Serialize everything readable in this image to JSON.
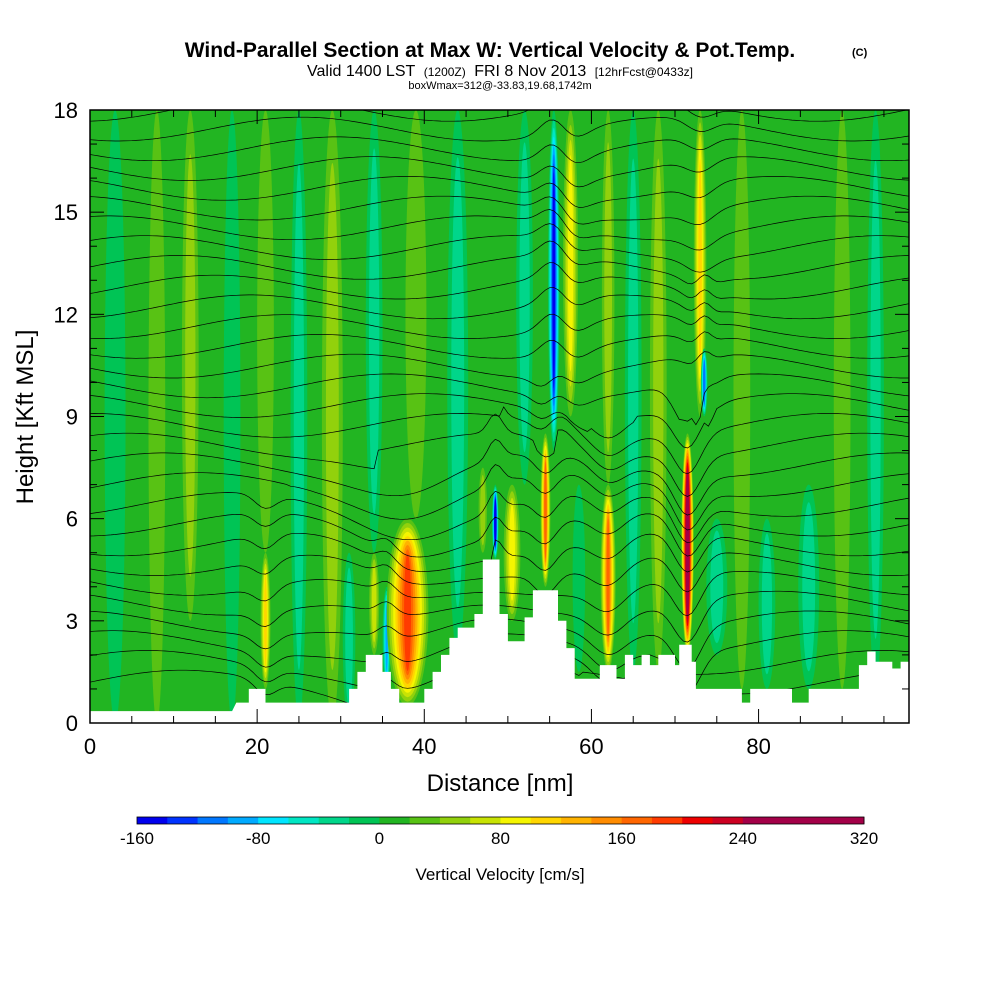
{
  "chart_data": {
    "type": "heatmap",
    "title": "Wind-Parallel Section at Max W: Vertical Velocity & Pot.Temp.",
    "copyright": "(C)",
    "subtitle": {
      "valid": "Valid 1400 LST",
      "utc": "(1200Z)",
      "date": "FRI 8 Nov 2013",
      "forecast": "[12hrFcst@0433z]"
    },
    "note": "boxWmax=312@-33.83,19.68,1742m",
    "xlabel": "Distance [nm]",
    "ylabel": "Height [Kft MSL]",
    "xlim": [
      0,
      98
    ],
    "ylim": [
      0,
      18
    ],
    "x_ticks": [
      0,
      20,
      40,
      60,
      80
    ],
    "x_tick_labels": [
      "0",
      "20",
      "40",
      "60",
      "80"
    ],
    "y_ticks": [
      0,
      3,
      6,
      9,
      12,
      15,
      18
    ],
    "y_tick_labels": [
      "0",
      "3",
      "6",
      "9",
      "12",
      "15",
      "18"
    ],
    "colorbar": {
      "label": "Vertical Velocity [cm/s]",
      "min": -160,
      "max": 320,
      "step": 20,
      "tick_values": [
        -160,
        -80,
        0,
        80,
        160,
        240,
        320
      ],
      "tick_labels": [
        "-160",
        "-80",
        "0",
        "80",
        "160",
        "240",
        "320"
      ],
      "colors": [
        "#0000ee",
        "#0033ff",
        "#0077ff",
        "#00aaff",
        "#00e5ff",
        "#00e6c3",
        "#00d68a",
        "#00c455",
        "#22b522",
        "#58c214",
        "#92d10c",
        "#c8e304",
        "#f5f500",
        "#ffd600",
        "#ffb300",
        "#ff8c00",
        "#ff6600",
        "#ff3b00",
        "#ee0000",
        "#cc0022",
        "#a30048"
      ]
    },
    "background_w": 5,
    "vertical_velocity_features": [
      {
        "x": 3,
        "z_bottom": 0,
        "z_top": 18,
        "width": 2.5,
        "w": -15
      },
      {
        "x": 8,
        "z_bottom": 0,
        "z_top": 18,
        "width": 2.0,
        "w": 30
      },
      {
        "x": 12,
        "z_bottom": 3,
        "z_top": 18,
        "width": 2.0,
        "w": 45
      },
      {
        "x": 17,
        "z_bottom": 0,
        "z_top": 18,
        "width": 2.0,
        "w": -20
      },
      {
        "x": 21,
        "z_bottom": 1,
        "z_top": 5,
        "width": 1.2,
        "w": 110
      },
      {
        "x": 21,
        "z_bottom": 5,
        "z_top": 18,
        "width": 2.0,
        "w": 30
      },
      {
        "x": 25,
        "z_bottom": 0,
        "z_top": 18,
        "width": 2.0,
        "w": -30
      },
      {
        "x": 29,
        "z_bottom": 0,
        "z_top": 18,
        "width": 2.5,
        "w": 35
      },
      {
        "x": 31,
        "z_bottom": 0,
        "z_top": 5,
        "width": 1.5,
        "w": -25
      },
      {
        "x": 34,
        "z_bottom": 2,
        "z_top": 5,
        "width": 1.2,
        "w": 55
      },
      {
        "x": 34,
        "z_bottom": 5,
        "z_top": 18,
        "width": 2.0,
        "w": -30
      },
      {
        "x": 35.5,
        "z_bottom": 1,
        "z_top": 4,
        "width": 1.0,
        "w": -90
      },
      {
        "x": 38,
        "z_bottom": 0.5,
        "z_top": 6,
        "width": 5.0,
        "w": 185
      },
      {
        "x": 39,
        "z_bottom": 6,
        "z_top": 18,
        "width": 2.5,
        "w": 30
      },
      {
        "x": 44,
        "z_bottom": 2,
        "z_top": 18,
        "width": 2.5,
        "w": -30
      },
      {
        "x": 47,
        "z_bottom": 5,
        "z_top": 7.5,
        "width": 1.0,
        "w": 35
      },
      {
        "x": 48.5,
        "z_bottom": 4.8,
        "z_top": 7,
        "width": 0.8,
        "w": -150
      },
      {
        "x": 50.5,
        "z_bottom": 3,
        "z_top": 7,
        "width": 2.0,
        "w": 80
      },
      {
        "x": 52,
        "z_bottom": 7,
        "z_top": 18,
        "width": 2.0,
        "w": -25
      },
      {
        "x": 54.5,
        "z_bottom": 4,
        "z_top": 8.5,
        "width": 1.2,
        "w": 155
      },
      {
        "x": 55.5,
        "z_bottom": 8,
        "z_top": 18,
        "width": 1.4,
        "w": -160
      },
      {
        "x": 57.5,
        "z_bottom": 9,
        "z_top": 18,
        "width": 1.8,
        "w": 90
      },
      {
        "x": 58.5,
        "z_bottom": 1.5,
        "z_top": 7,
        "width": 1.5,
        "w": -20
      },
      {
        "x": 62,
        "z_bottom": 1.5,
        "z_top": 7,
        "width": 1.8,
        "w": 160
      },
      {
        "x": 62,
        "z_bottom": 7,
        "z_top": 18,
        "width": 1.5,
        "w": 35
      },
      {
        "x": 65,
        "z_bottom": 1.5,
        "z_top": 18,
        "width": 2.0,
        "w": -25
      },
      {
        "x": 68,
        "z_bottom": 1.5,
        "z_top": 18,
        "width": 2.0,
        "w": 35
      },
      {
        "x": 71.5,
        "z_bottom": 2,
        "z_top": 8.5,
        "width": 1.5,
        "w": 310
      },
      {
        "x": 73,
        "z_bottom": 9,
        "z_top": 18,
        "width": 1.5,
        "w": 100
      },
      {
        "x": 73.5,
        "z_bottom": 9,
        "z_top": 11,
        "width": 0.8,
        "w": -120
      },
      {
        "x": 75,
        "z_bottom": 2,
        "z_top": 6,
        "width": 2.5,
        "w": -40
      },
      {
        "x": 78,
        "z_bottom": 1,
        "z_top": 18,
        "width": 2.0,
        "w": 20
      },
      {
        "x": 81,
        "z_bottom": 1,
        "z_top": 6,
        "width": 2.0,
        "w": -35
      },
      {
        "x": 86,
        "z_bottom": 1,
        "z_top": 7,
        "width": 2.5,
        "w": -40
      },
      {
        "x": 90,
        "z_bottom": 1,
        "z_top": 18,
        "width": 2.0,
        "w": 25
      },
      {
        "x": 94,
        "z_bottom": 1,
        "z_top": 18,
        "width": 2.0,
        "w": -30
      }
    ],
    "terrain": [
      [
        0,
        0.35
      ],
      [
        17,
        0.35
      ],
      [
        17.5,
        0.6
      ],
      [
        19,
        0.6
      ],
      [
        19,
        1.0
      ],
      [
        21,
        1.0
      ],
      [
        21,
        0.6
      ],
      [
        31,
        0.6
      ],
      [
        31,
        1.0
      ],
      [
        32,
        1.0
      ],
      [
        32,
        1.5
      ],
      [
        33,
        1.5
      ],
      [
        33,
        2.0
      ],
      [
        35,
        2.0
      ],
      [
        35,
        1.5
      ],
      [
        36,
        1.5
      ],
      [
        36,
        1.0
      ],
      [
        37,
        1.0
      ],
      [
        37,
        0.6
      ],
      [
        40,
        0.6
      ],
      [
        40,
        1.0
      ],
      [
        41,
        1.0
      ],
      [
        41,
        1.5
      ],
      [
        42,
        1.5
      ],
      [
        42,
        2.0
      ],
      [
        43,
        2.0
      ],
      [
        43,
        2.5
      ],
      [
        44,
        2.5
      ],
      [
        44,
        2.8
      ],
      [
        46,
        2.8
      ],
      [
        46,
        3.2
      ],
      [
        47,
        3.2
      ],
      [
        47,
        4.8
      ],
      [
        49,
        4.8
      ],
      [
        49,
        3.2
      ],
      [
        50,
        3.2
      ],
      [
        50,
        2.4
      ],
      [
        52,
        2.4
      ],
      [
        52,
        3.1
      ],
      [
        53,
        3.1
      ],
      [
        53,
        3.9
      ],
      [
        56,
        3.9
      ],
      [
        56,
        3.0
      ],
      [
        57,
        3.0
      ],
      [
        57,
        2.2
      ],
      [
        58,
        2.2
      ],
      [
        58,
        1.3
      ],
      [
        61,
        1.3
      ],
      [
        61,
        1.7
      ],
      [
        63,
        1.7
      ],
      [
        63,
        1.3
      ],
      [
        64,
        1.3
      ],
      [
        64,
        2.0
      ],
      [
        65,
        2.0
      ],
      [
        65,
        1.7
      ],
      [
        66,
        1.7
      ],
      [
        66,
        2.0
      ],
      [
        67,
        2.0
      ],
      [
        67,
        1.7
      ],
      [
        68,
        1.7
      ],
      [
        68,
        2.0
      ],
      [
        70,
        2.0
      ],
      [
        70,
        1.7
      ],
      [
        70.5,
        1.7
      ],
      [
        70.5,
        2.3
      ],
      [
        72,
        2.3
      ],
      [
        72,
        1.8
      ],
      [
        72.5,
        1.8
      ],
      [
        72.5,
        1.0
      ],
      [
        78,
        1.0
      ],
      [
        78,
        0.6
      ],
      [
        79,
        0.6
      ],
      [
        79,
        1.0
      ],
      [
        84,
        1.0
      ],
      [
        84,
        0.6
      ],
      [
        86,
        0.6
      ],
      [
        86,
        1.0
      ],
      [
        92,
        1.0
      ],
      [
        92,
        1.7
      ],
      [
        93,
        1.7
      ],
      [
        93,
        2.1
      ],
      [
        94,
        2.1
      ],
      [
        94,
        1.8
      ],
      [
        96,
        1.8
      ],
      [
        96,
        1.6
      ],
      [
        97,
        1.6
      ],
      [
        97,
        1.8
      ],
      [
        98,
        1.8
      ],
      [
        98,
        0
      ]
    ],
    "theta_contours": {
      "count": 30,
      "base_height": 1.2,
      "spacing": 0.58,
      "label_note": "isentrope labels too small to read"
    }
  }
}
